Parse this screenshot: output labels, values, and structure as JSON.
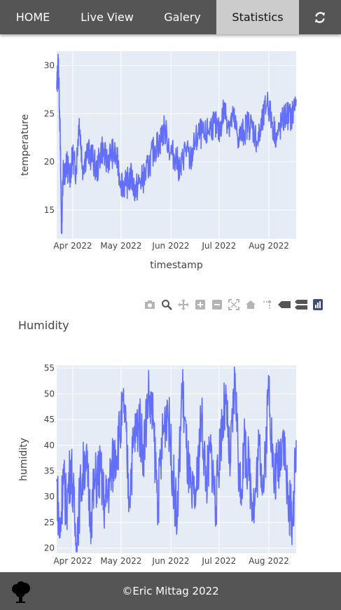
{
  "nav": {
    "home": "HOME",
    "live": "Live View",
    "galery": "Galery",
    "stats": "Statistics",
    "refresh_icon": "refresh-icon"
  },
  "modebar_icons": [
    "camera-icon",
    "zoom-icon",
    "pan-icon",
    "zoom-in-icon",
    "zoom-out-icon",
    "autoscale-icon",
    "reset-axes-icon",
    "spike-lines-icon",
    "hover-closest-icon",
    "hover-compare-icon",
    "plotly-logo-icon"
  ],
  "humidity_section": {
    "title": "Humidity"
  },
  "footer": {
    "text": "©Eric Mittag 2022",
    "logo_icon": "tree-icon"
  },
  "colors": {
    "nav_bg": "#555555",
    "nav_active": "#cccccc",
    "plot_bg": "#e5ecf6",
    "line": "#636efa"
  },
  "chart_data": [
    {
      "type": "line",
      "title": "",
      "xlabel": "timestamp",
      "ylabel": "temperature",
      "xlim": [
        "2022-03-22",
        "2022-08-18"
      ],
      "ylim": [
        12,
        31.5
      ],
      "yticks": [
        15,
        20,
        25,
        30
      ],
      "xticks": [
        {
          "date": "2022-04-01",
          "label": "Apr 2022"
        },
        {
          "date": "2022-05-01",
          "label": "May 2022"
        },
        {
          "date": "2022-06-01",
          "label": "Jun 2022"
        },
        {
          "date": "2022-07-01",
          "label": "Jul 2022"
        },
        {
          "date": "2022-08-01",
          "label": "Aug 2022"
        }
      ],
      "series": [
        {
          "x": [
            "2022-03-22",
            "2022-03-23",
            "2022-03-24",
            "2022-03-25",
            "2022-03-26",
            "2022-03-27",
            "2022-03-28",
            "2022-03-30",
            "2022-04-01",
            "2022-04-03",
            "2022-04-05",
            "2022-04-07",
            "2022-04-10",
            "2022-04-13",
            "2022-04-16",
            "2022-04-19",
            "2022-04-22",
            "2022-04-25",
            "2022-04-28",
            "2022-05-01",
            "2022-05-04",
            "2022-05-07",
            "2022-05-10",
            "2022-05-13",
            "2022-05-16",
            "2022-05-19",
            "2022-05-22",
            "2022-05-25",
            "2022-05-28",
            "2022-06-01",
            "2022-06-04",
            "2022-06-07",
            "2022-06-10",
            "2022-06-13",
            "2022-06-16",
            "2022-06-19",
            "2022-06-22",
            "2022-06-25",
            "2022-06-28",
            "2022-07-01",
            "2022-07-04",
            "2022-07-07",
            "2022-07-10",
            "2022-07-13",
            "2022-07-16",
            "2022-07-19",
            "2022-07-22",
            "2022-07-25",
            "2022-07-28",
            "2022-07-31",
            "2022-08-03",
            "2022-08-06",
            "2022-08-09",
            "2022-08-12",
            "2022-08-15",
            "2022-08-18"
          ],
          "y": [
            27.5,
            30.4,
            24,
            12.7,
            19.5,
            18,
            20,
            18.5,
            20.5,
            19,
            24.5,
            19.5,
            21,
            20.5,
            19,
            21.5,
            20,
            21,
            20.5,
            18,
            17.5,
            18.5,
            17,
            18,
            18.5,
            20,
            21.5,
            22,
            23.5,
            21,
            20.5,
            19,
            21.5,
            20,
            22,
            23,
            22.5,
            23.5,
            24,
            23,
            25.5,
            24,
            24.5,
            22.5,
            23,
            24,
            23.5,
            22,
            24,
            26.5,
            24,
            22.5,
            24,
            25,
            24.5,
            26.5
          ]
        }
      ]
    },
    {
      "type": "line",
      "title": "",
      "xlabel": "",
      "ylabel": "humidity",
      "xlim": [
        "2022-03-22",
        "2022-08-18"
      ],
      "ylim": [
        19,
        55.5
      ],
      "yticks": [
        20,
        25,
        30,
        35,
        40,
        45,
        50,
        55
      ],
      "xticks": [
        {
          "date": "2022-04-01",
          "label": "Apr 2022"
        },
        {
          "date": "2022-05-01",
          "label": "May 2022"
        },
        {
          "date": "2022-06-01",
          "label": "Jun 2022"
        },
        {
          "date": "2022-07-01",
          "label": "Jul 2022"
        },
        {
          "date": "2022-08-01",
          "label": "Aug 2022"
        }
      ],
      "series": [
        {
          "x": [
            "2022-03-22",
            "2022-03-24",
            "2022-03-26",
            "2022-03-28",
            "2022-03-31",
            "2022-04-03",
            "2022-04-06",
            "2022-04-09",
            "2022-04-12",
            "2022-04-15",
            "2022-04-18",
            "2022-04-21",
            "2022-04-24",
            "2022-04-27",
            "2022-04-30",
            "2022-05-03",
            "2022-05-06",
            "2022-05-09",
            "2022-05-12",
            "2022-05-15",
            "2022-05-18",
            "2022-05-21",
            "2022-05-24",
            "2022-05-27",
            "2022-05-30",
            "2022-06-02",
            "2022-06-05",
            "2022-06-08",
            "2022-06-11",
            "2022-06-14",
            "2022-06-17",
            "2022-06-20",
            "2022-06-23",
            "2022-06-26",
            "2022-06-29",
            "2022-07-02",
            "2022-07-05",
            "2022-07-08",
            "2022-07-11",
            "2022-07-14",
            "2022-07-17",
            "2022-07-20",
            "2022-07-23",
            "2022-07-26",
            "2022-07-29",
            "2022-08-01",
            "2022-08-04",
            "2022-08-07",
            "2022-08-10",
            "2022-08-13",
            "2022-08-16",
            "2022-08-18"
          ],
          "y": [
            33,
            22,
            34,
            28,
            37,
            21,
            32,
            38,
            26,
            33,
            35,
            28,
            33,
            38,
            42,
            48,
            30,
            41,
            45,
            39,
            50,
            44,
            29,
            42,
            48,
            35,
            25,
            52,
            38,
            29,
            31,
            46,
            33,
            39,
            28,
            42,
            48,
            36,
            54,
            30,
            40,
            34,
            28,
            40,
            32,
            53,
            33,
            37,
            43,
            28,
            26,
            41
          ]
        }
      ]
    }
  ]
}
